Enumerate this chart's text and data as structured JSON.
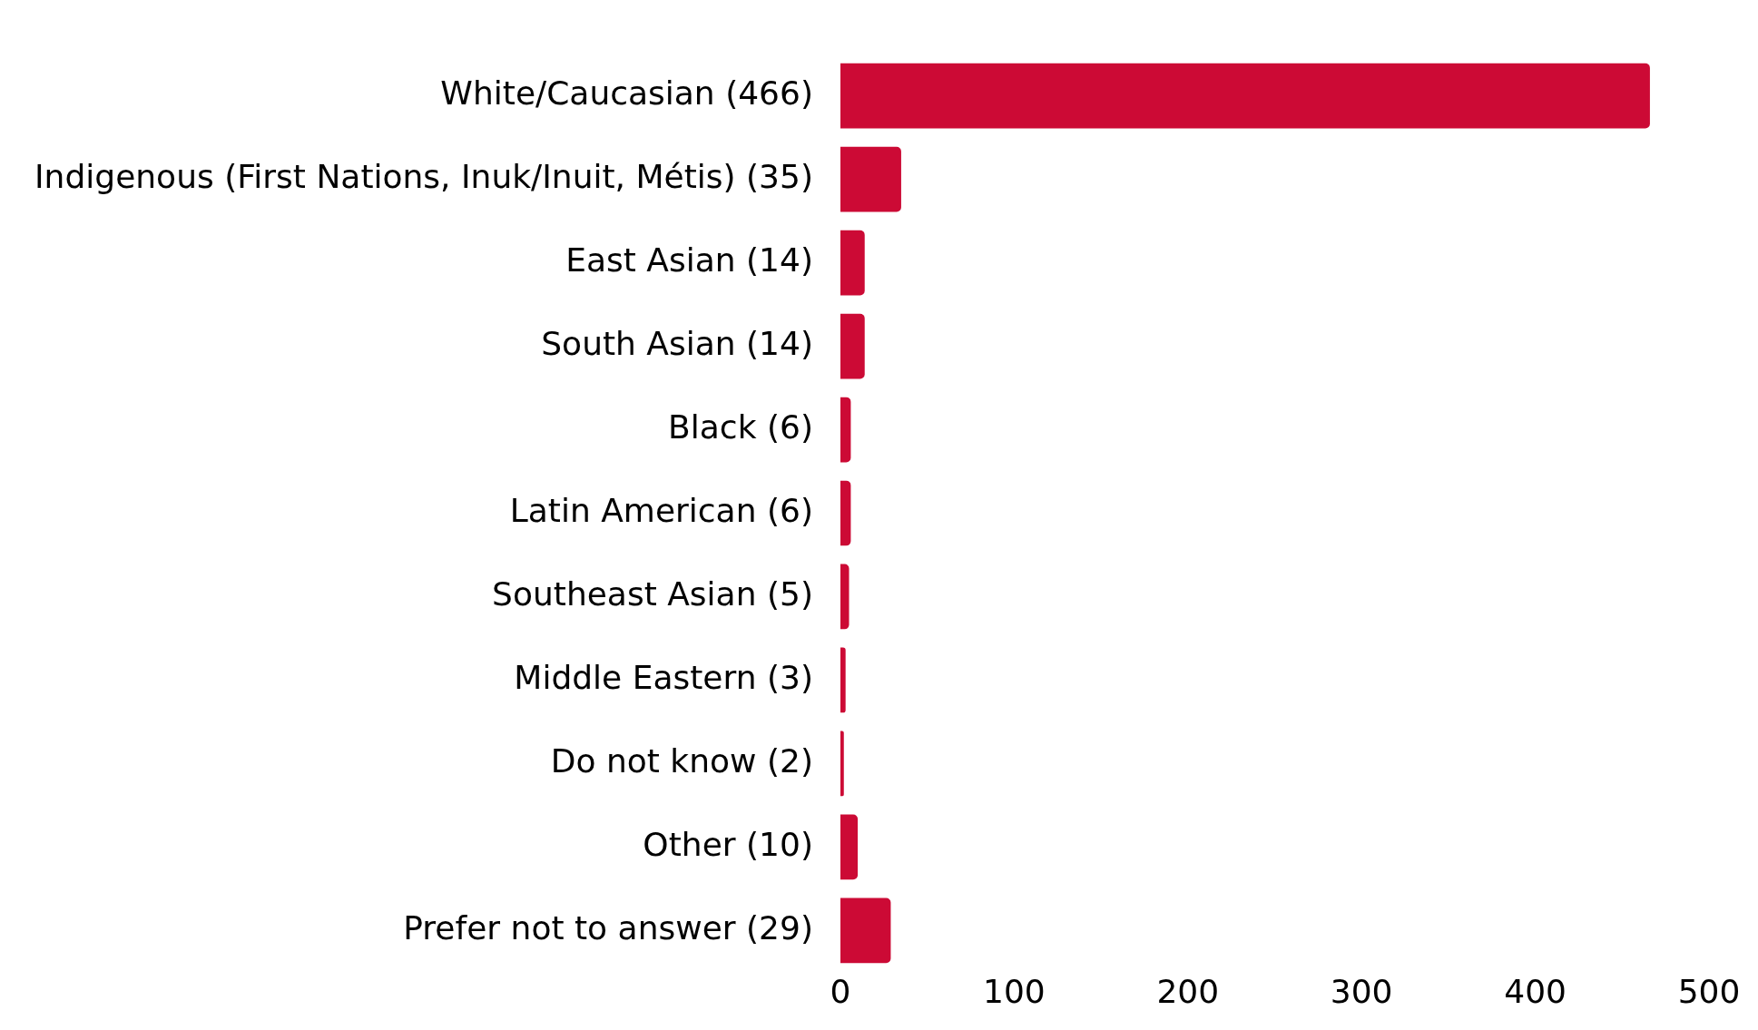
{
  "chart_data": {
    "type": "bar",
    "orientation": "horizontal",
    "categories": [
      "White/Caucasian (466)",
      "Indigenous (First Nations, Inuk/Inuit, Métis) (35)",
      "East Asian (14)",
      "South Asian (14)",
      "Black (6)",
      "Latin American (6)",
      "Southeast Asian (5)",
      "Middle Eastern (3)",
      "Do not know (2)",
      "Other (10)",
      "Prefer not to answer (29)"
    ],
    "values": [
      466,
      35,
      14,
      14,
      6,
      6,
      5,
      3,
      2,
      10,
      29
    ],
    "color": "#cc0a35",
    "xlim": [
      0,
      500
    ],
    "xticks": [
      0,
      100,
      200,
      300,
      400,
      500
    ],
    "grid": false,
    "legend": false
  }
}
